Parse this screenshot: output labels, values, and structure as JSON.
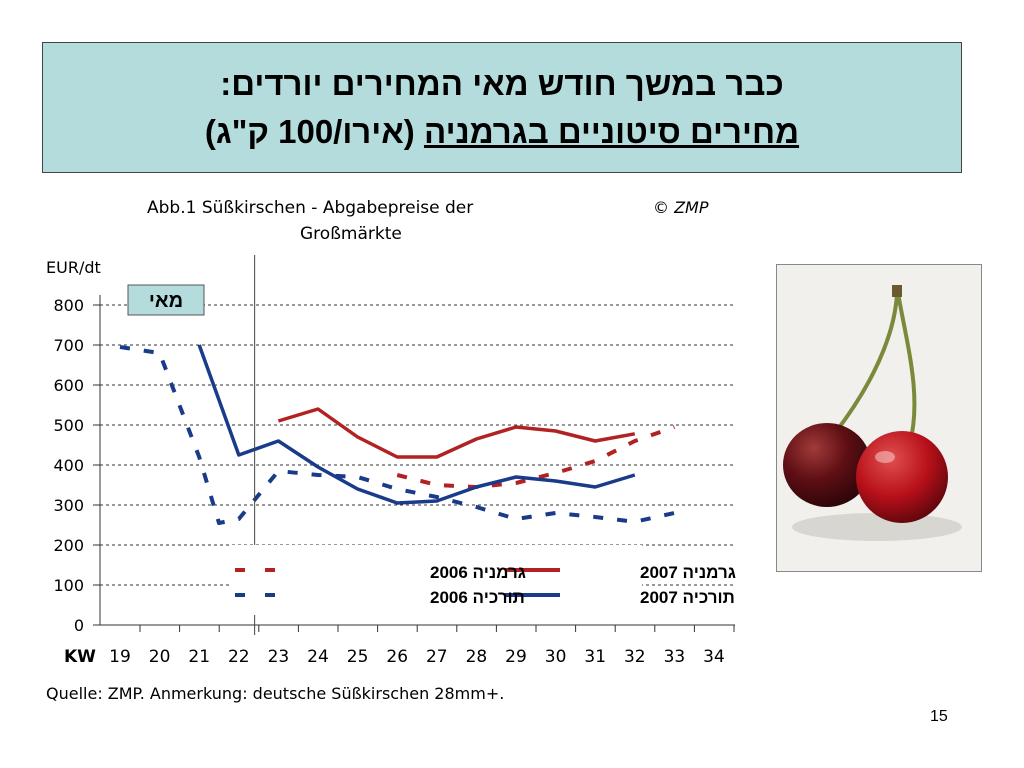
{
  "slide": {
    "title_line1": "כבר במשך חודש מאי המחירים יורדים:",
    "title_line2_underlined": "מחירים סיטוניים בגרמניה",
    "title_line2_rest": " (אירו/100 ק\"ג)",
    "page_number": "15"
  },
  "chart_data": {
    "type": "line",
    "title": "Abb.1 Süßkirschen - Abgabepreise der Großmärkte",
    "title_lines": [
      "Abb.1 Süßkirschen - Abgabepreise der",
      "Großmärkte"
    ],
    "copyright": "© ZMP",
    "ylabel": "EUR/dt",
    "xlabel": "KW",
    "x_ticks": [
      19,
      20,
      21,
      22,
      23,
      24,
      25,
      26,
      27,
      28,
      29,
      30,
      31,
      32,
      33,
      34
    ],
    "y_ticks": [
      0,
      100,
      200,
      300,
      400,
      500,
      600,
      700,
      800
    ],
    "ylim": [
      0,
      800
    ],
    "xlim": [
      19,
      34
    ],
    "grid": "horizontal dashed",
    "source_note": "Quelle: ZMP. Anmerkung: deutsche Süßkirschen 28mm+.",
    "marker": {
      "label": "מאי",
      "x": 22.4
    },
    "legend_placement": "bottom-center",
    "colors": {
      "germany": "#b22222",
      "turkey": "#1a3a8a"
    },
    "series": [
      {
        "name": "גרמניה 2007",
        "style": "solid",
        "color_key": "germany",
        "x": [
          23,
          24,
          25,
          26,
          27,
          28,
          29,
          30,
          31,
          32
        ],
        "y": [
          510,
          540,
          470,
          420,
          420,
          465,
          495,
          485,
          460,
          478
        ]
      },
      {
        "name": "גרמניה 2006",
        "style": "dashed",
        "color_key": "germany",
        "x": [
          26,
          27,
          28,
          29,
          30,
          31,
          32,
          33
        ],
        "y": [
          375,
          350,
          345,
          355,
          380,
          410,
          460,
          495
        ]
      },
      {
        "name": "תורכיה 2007",
        "style": "solid",
        "color_key": "turkey",
        "x": [
          21,
          22,
          23,
          24,
          25,
          26,
          27,
          28,
          29,
          30,
          31,
          32
        ],
        "y": [
          700,
          425,
          460,
          395,
          340,
          305,
          310,
          345,
          370,
          360,
          345,
          375
        ]
      },
      {
        "name": "תורכיה 2006",
        "style": "dashed",
        "color_key": "turkey",
        "x": [
          19,
          20,
          21,
          21.5,
          22,
          23,
          24,
          25,
          26,
          27,
          28,
          29,
          30,
          31,
          32,
          33
        ],
        "y": [
          695,
          680,
          420,
          255,
          265,
          385,
          375,
          370,
          340,
          320,
          295,
          265,
          280,
          270,
          258,
          280
        ]
      }
    ]
  }
}
